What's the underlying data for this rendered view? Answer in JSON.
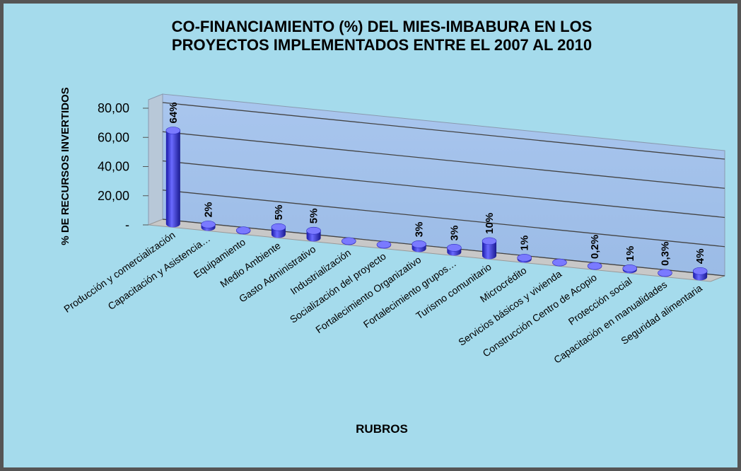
{
  "chart_data": {
    "type": "bar3d",
    "title": [
      "CO-FINANCIAMIENTO (%) DEL MIES-IMBABURA EN LOS",
      "PROYECTOS IMPLEMENTADOS ENTRE EL 2007 AL 2010"
    ],
    "y_axis_label": "% DE RECURSOS INVERTIDOS",
    "x_axis_label": "RUBROS",
    "categories": [
      "Producción y comercialización",
      "Capacitación y Asistencia…",
      "Equipamiento",
      "Medio Ambiente",
      "Gasto Administrativo",
      "Industrialización",
      "Socialización del proyecto",
      "Fortalecimiento Organizativo",
      "Fortalecimiento grupos…",
      "Turismo comunitario",
      "Microcrédito",
      "Servicios básicos y vivienda",
      "Construcción Centro de Acopio",
      "Protección social",
      "Capacitación en manualidades",
      "Seguridad alimentaria"
    ],
    "values": [
      64,
      2,
      0.4,
      5,
      5,
      0.3,
      0.3,
      3,
      3,
      10,
      1,
      0.2,
      0.2,
      1,
      0.3,
      4
    ],
    "value_labels": [
      "64%",
      "2%",
      null,
      "5%",
      "5%",
      null,
      null,
      "3%",
      "3%",
      "10%",
      "1%",
      null,
      "0,2%",
      "1%",
      "0,3%",
      "4%"
    ],
    "color": "#3c3cf0",
    "ylim": [
      0,
      80
    ],
    "yticks": [
      {
        "value": 0,
        "label": "-"
      },
      {
        "value": 20,
        "label": "20,00"
      },
      {
        "value": 40,
        "label": "40,00"
      },
      {
        "value": 60,
        "label": "60,00"
      },
      {
        "value": 80,
        "label": "80,00"
      }
    ],
    "grid": true
  }
}
